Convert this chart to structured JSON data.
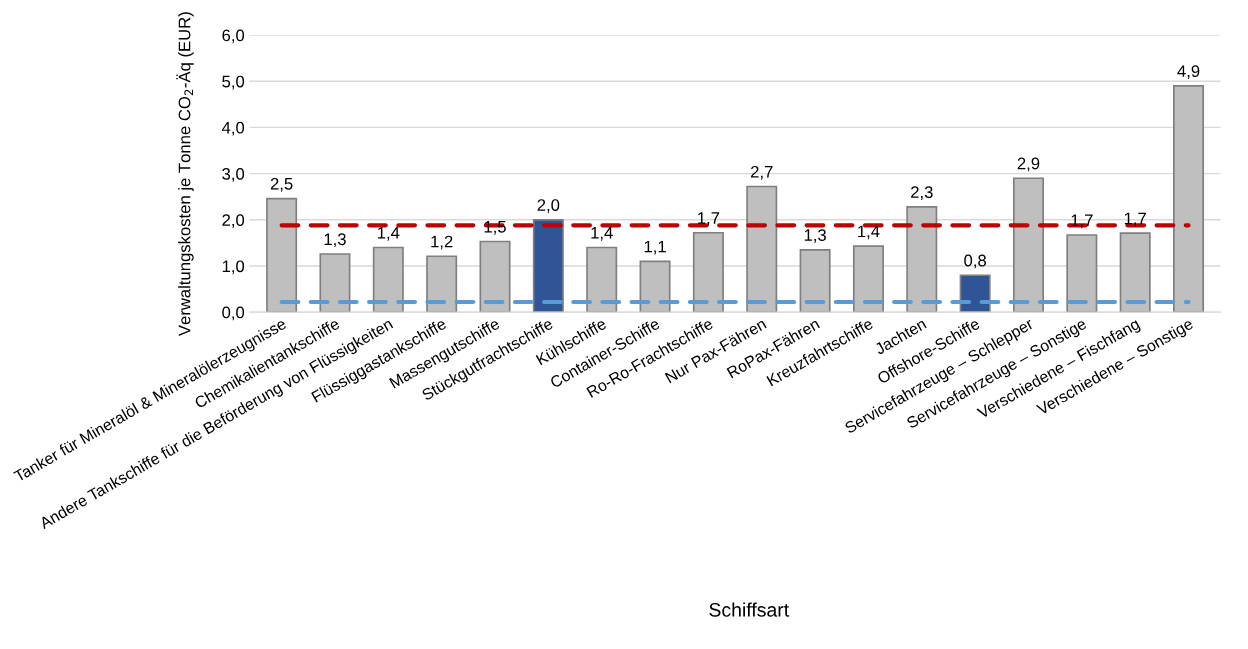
{
  "chart_data": {
    "type": "bar",
    "xlabel": "Schiffsart",
    "ylabel": "Verwaltungskosten je Tonne CO$_{2}$-Äq (EUR)",
    "categories": [
      "Tanker für Mineralöl & Mineralölerzeugnisse",
      "Chemikalientankschiffe",
      "Andere Tankschiffe für die Beförderung von Flüssigkeiten",
      "Flüssiggastankschiffe",
      "Massengutschiffe",
      "Stückgutfrachtschiffe",
      "Kühlschiffe",
      "Container-Schiffe",
      "Ro-Ro-Frachtschiffe",
      "Nur Pax-Fähren",
      "RoPax-Fähren",
      "Kreuzfahrtschiffe",
      "Jachten",
      "Offshore-Schiffe",
      "Servicefahrzeuge – Schlepper",
      "Servicefahrzeuge – Sonstige",
      "Verschiedene – Fischfang",
      "Verschiedene – Sonstige"
    ],
    "values": [
      2.46,
      1.26,
      1.4,
      1.21,
      1.53,
      2.0,
      1.4,
      1.1,
      1.72,
      2.72,
      1.35,
      1.43,
      2.28,
      0.8,
      2.9,
      1.67,
      1.71,
      4.9
    ],
    "value_labels": [
      "2,5",
      "1,3",
      "1,4",
      "1,2",
      "1,5",
      "2,0",
      "1,4",
      "1,1",
      "1,7",
      "2,7",
      "1,3",
      "1,4",
      "2,3",
      "0,8",
      "2,9",
      "1,7",
      "1,7",
      "4,9"
    ],
    "colors": [
      "#bfbfbf",
      "#bfbfbf",
      "#bfbfbf",
      "#bfbfbf",
      "#bfbfbf",
      "#2f5597",
      "#bfbfbf",
      "#bfbfbf",
      "#bfbfbf",
      "#bfbfbf",
      "#bfbfbf",
      "#bfbfbf",
      "#bfbfbf",
      "#2f5597",
      "#bfbfbf",
      "#bfbfbf",
      "#bfbfbf",
      "#bfbfbf"
    ],
    "ylim": [
      0,
      6
    ],
    "yticks": [
      {
        "value": 0,
        "label": "0,0"
      },
      {
        "value": 1,
        "label": "1,0"
      },
      {
        "value": 2,
        "label": "2,0"
      },
      {
        "value": 3,
        "label": "3,0"
      },
      {
        "value": 4,
        "label": "4,0"
      },
      {
        "value": 5,
        "label": "5,0"
      },
      {
        "value": 6,
        "label": "6,0"
      }
    ],
    "ref_lines": [
      {
        "axis": "y",
        "value": 1.88,
        "color": "#c00000",
        "line_style": "dashed"
      },
      {
        "axis": "y",
        "value": 0.22,
        "color": "#5b9bd5",
        "line_style": "dashed"
      }
    ],
    "grid": "y"
  }
}
